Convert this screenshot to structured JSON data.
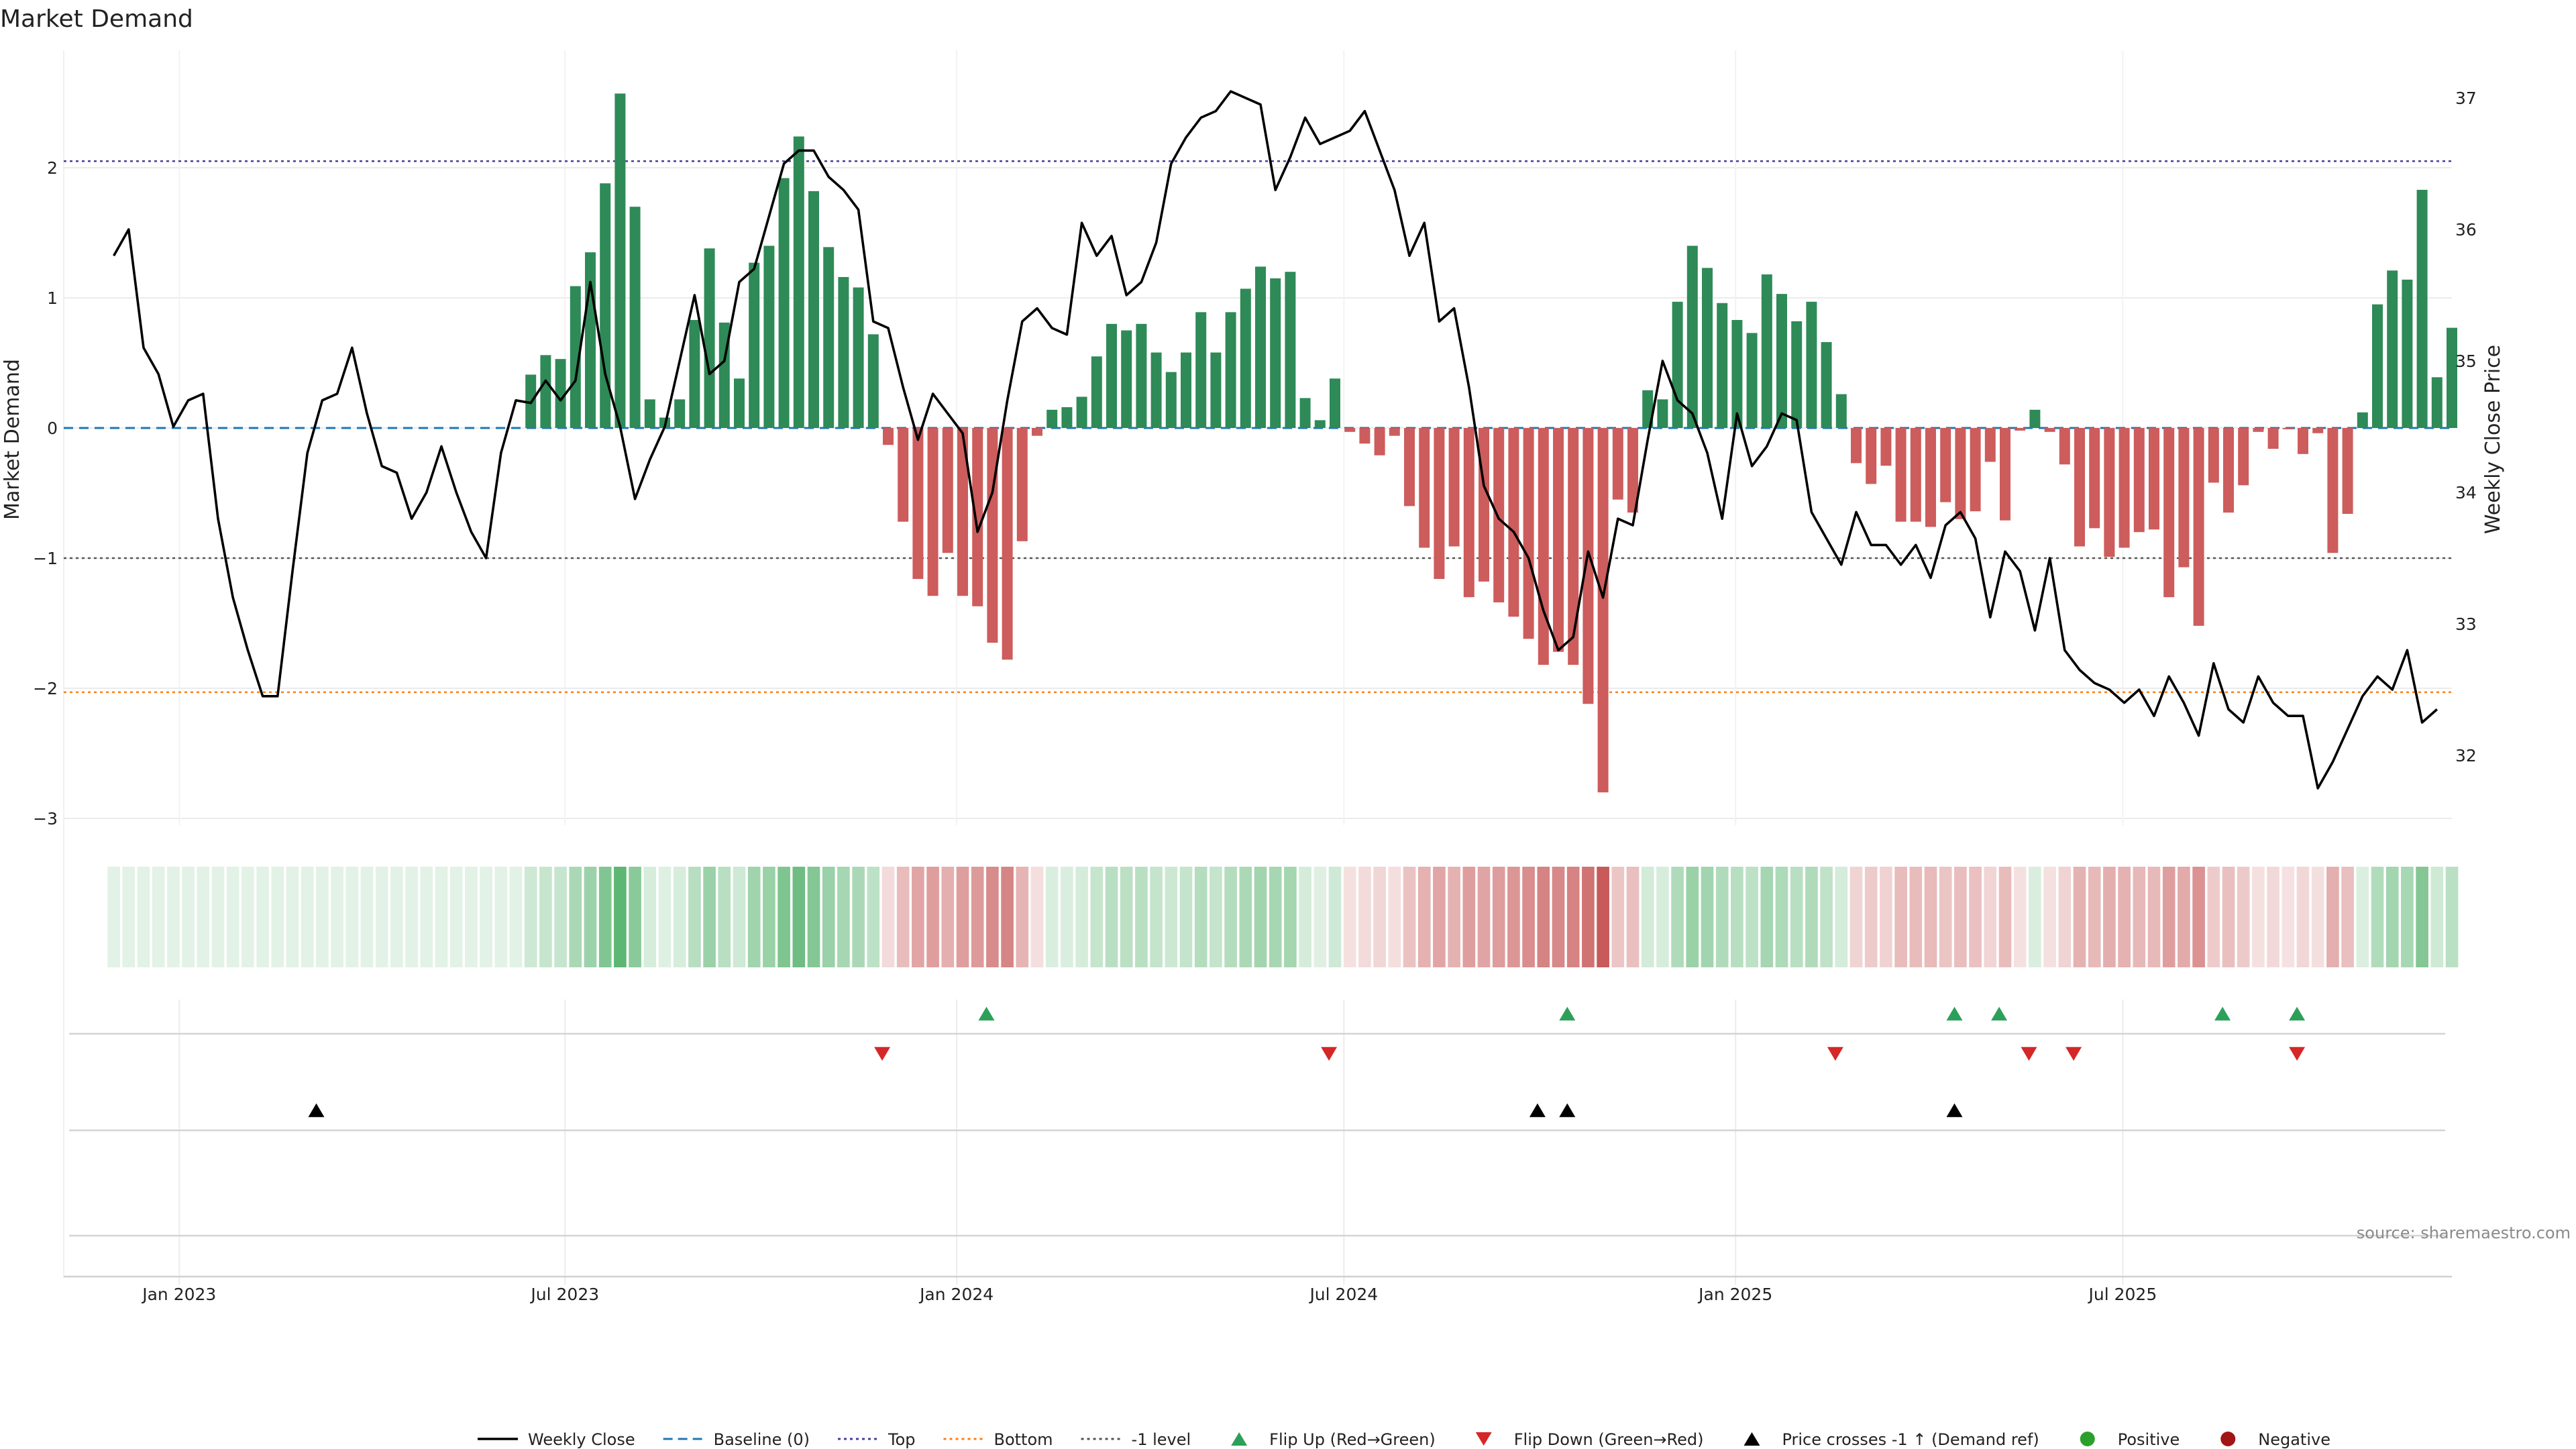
{
  "chart_data": {
    "type": "bar",
    "title": "Market Demand",
    "ylabel": "Market Demand",
    "y2label": "Weekly Close Price",
    "ylim": [
      -3.3,
      2.75
    ],
    "y2lim": [
      31.5,
      37.3
    ],
    "yticks": [
      2,
      1,
      0,
      -1,
      -2,
      -3
    ],
    "yticklabels": [
      "2",
      "1",
      "0",
      "−1",
      "−2",
      "−3"
    ],
    "y2ticks": [
      37,
      36,
      35,
      34,
      33,
      32
    ],
    "y2ticklabels": [
      "37",
      "36",
      "35",
      "34",
      "33",
      "32"
    ],
    "x_range_weeks": [
      -3,
      157
    ],
    "xticks": [
      {
        "label": "Jan 2023",
        "week": 4.4
      },
      {
        "label": "Jul 2023",
        "week": 30.3
      },
      {
        "label": "Jan 2024",
        "week": 56.6
      },
      {
        "label": "Jul 2024",
        "week": 82.6
      },
      {
        "label": "Jan 2025",
        "week": 108.9
      },
      {
        "label": "Jul 2025",
        "week": 134.9
      }
    ],
    "reference_lines": {
      "top": 2.05,
      "bottom": -2.03,
      "baseline": 0,
      "minus_one": -1
    },
    "demand": [
      0,
      0,
      0,
      0,
      0,
      0,
      0,
      0,
      0,
      0,
      0,
      0,
      0,
      0,
      0,
      0,
      0,
      0,
      0,
      0,
      0,
      0,
      0,
      0,
      0,
      0,
      0,
      0,
      0.41,
      0.56,
      0.53,
      1.09,
      1.35,
      1.88,
      2.57,
      1.7,
      0.22,
      0.08,
      0.22,
      0.83,
      1.38,
      0.81,
      0.38,
      1.27,
      1.4,
      1.92,
      2.24,
      1.82,
      1.39,
      1.16,
      1.08,
      0.72,
      -0.13,
      -0.72,
      -1.16,
      -1.29,
      -0.96,
      -1.29,
      -1.37,
      -1.65,
      -1.78,
      -0.87,
      -0.06,
      0.14,
      0.16,
      0.24,
      0.55,
      0.8,
      0.75,
      0.8,
      0.58,
      0.43,
      0.58,
      0.89,
      0.58,
      0.89,
      1.07,
      1.24,
      1.15,
      1.2,
      0.23,
      0.06,
      0.38,
      -0.03,
      -0.12,
      -0.21,
      -0.06,
      -0.6,
      -0.92,
      -1.16,
      -0.91,
      -1.3,
      -1.18,
      -1.34,
      -1.45,
      -1.62,
      -1.82,
      -1.72,
      -1.82,
      -2.12,
      -2.8,
      -0.55,
      -0.65,
      0.29,
      0.22,
      0.97,
      1.4,
      1.23,
      0.96,
      0.83,
      0.73,
      1.18,
      1.03,
      0.82,
      0.97,
      0.66,
      0.26,
      -0.27,
      -0.43,
      -0.29,
      -0.72,
      -0.72,
      -0.76,
      -0.57,
      -0.7,
      -0.64,
      -0.26,
      -0.71,
      -0.02,
      0.14,
      -0.03,
      -0.28,
      -0.91,
      -0.77,
      -0.99,
      -0.92,
      -0.8,
      -0.78,
      -1.3,
      -1.07,
      -1.52,
      -0.42,
      -0.65,
      -0.44,
      -0.03,
      -0.16,
      -0.01,
      -0.2,
      -0.04,
      -0.96,
      -0.66,
      0.12,
      0.95,
      1.21,
      1.14,
      1.83,
      0.39,
      0.77
    ],
    "weekly_close": [
      35.8,
      36.0,
      35.1,
      34.9,
      34.5,
      34.7,
      34.75,
      33.8,
      33.2,
      32.8,
      32.45,
      32.45,
      33.4,
      34.3,
      34.7,
      34.75,
      35.1,
      34.6,
      34.2,
      34.15,
      33.8,
      34.0,
      34.35,
      34.0,
      33.7,
      33.5,
      34.3,
      34.7,
      34.68,
      34.85,
      34.7,
      34.85,
      35.6,
      34.9,
      34.5,
      33.95,
      34.25,
      34.5,
      35.0,
      35.5,
      34.9,
      35.0,
      35.6,
      35.7,
      36.1,
      36.5,
      36.6,
      36.6,
      36.4,
      36.3,
      36.15,
      35.3,
      35.25,
      34.8,
      34.4,
      34.75,
      34.6,
      34.45,
      33.7,
      34.0,
      34.7,
      35.3,
      35.4,
      35.25,
      35.2,
      36.05,
      35.8,
      35.95,
      35.5,
      35.6,
      35.9,
      36.5,
      36.7,
      36.85,
      36.9,
      37.05,
      37.0,
      36.95,
      36.3,
      36.55,
      36.85,
      36.65,
      36.7,
      36.75,
      36.9,
      36.6,
      36.3,
      35.8,
      36.05,
      35.3,
      35.4,
      34.8,
      34.05,
      33.8,
      33.7,
      33.5,
      33.1,
      32.8,
      32.9,
      33.55,
      33.2,
      33.8,
      33.75,
      34.4,
      35.0,
      34.7,
      34.6,
      34.3,
      33.8,
      34.6,
      34.2,
      34.35,
      34.6,
      34.55,
      33.85,
      33.65,
      33.45,
      33.85,
      33.6,
      33.6,
      33.45,
      33.6,
      33.35,
      33.75,
      33.85,
      33.65,
      33.05,
      33.55,
      33.4,
      32.95,
      33.5,
      32.8,
      32.65,
      32.55,
      32.5,
      32.4,
      32.5,
      32.3,
      32.6,
      32.4,
      32.15,
      32.7,
      32.35,
      32.25,
      32.6,
      32.4,
      32.3,
      32.3,
      31.75,
      31.95,
      32.2,
      32.45,
      32.6,
      32.5,
      32.8,
      32.25,
      32.35
    ],
    "flip_up_weeks": [
      58.6,
      97.6,
      123.6,
      126.6,
      141.6,
      146.6
    ],
    "flip_down_weeks": [
      51.6,
      81.6,
      115.6,
      128.6,
      131.6,
      146.6
    ],
    "price_cross_weeks": [
      13.6,
      95.6,
      97.6,
      123.6
    ],
    "legend": [
      {
        "label": "Weekly Close",
        "kind": "line",
        "color": "#000000"
      },
      {
        "label": "Baseline (0)",
        "kind": "dashed",
        "color": "#1f77b4"
      },
      {
        "label": "Top",
        "kind": "dotted",
        "color": "#4a3d9a"
      },
      {
        "label": "Bottom",
        "kind": "dotted",
        "color": "#ff7f0e"
      },
      {
        "label": "-1 level",
        "kind": "dotted",
        "color": "#555555"
      },
      {
        "label": "Flip Up (Red→Green)",
        "kind": "tri-up",
        "color": "#2ca05a"
      },
      {
        "label": "Flip Down (Green→Red)",
        "kind": "tri-down",
        "color": "#d62728"
      },
      {
        "label": "Price crosses -1 ↑ (Demand ref)",
        "kind": "tri-up",
        "color": "#000000"
      },
      {
        "label": "Positive",
        "kind": "dot",
        "color": "#2ca02c"
      },
      {
        "label": "Negative",
        "kind": "dot",
        "color": "#a11515"
      }
    ],
    "colors": {
      "positive": "#2e8a57",
      "negative": "#cd5c5c",
      "price": "#000000",
      "strip_pos": "#5cb572",
      "strip_neg": "#c85a5a"
    },
    "source": "source: sharemaestro.com"
  }
}
